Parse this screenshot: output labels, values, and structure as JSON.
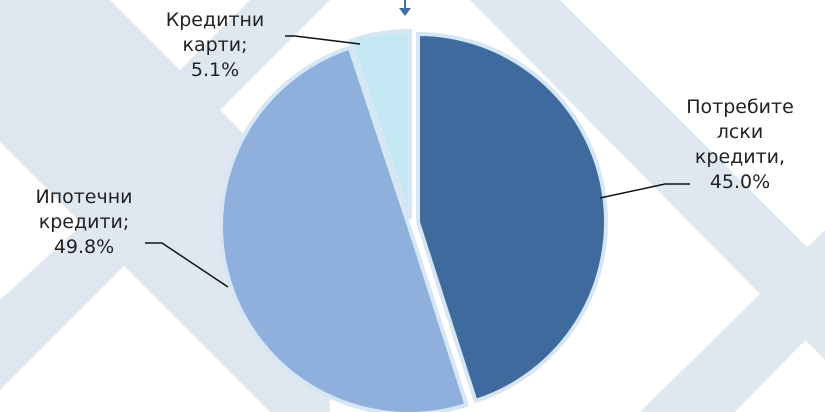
{
  "chart_data": {
    "type": "pie",
    "categories": [
      "Потребителски кредити,",
      "Ипотечни кредити;",
      "Кредитни карти;"
    ],
    "values": [
      45.0,
      49.8,
      5.1
    ],
    "value_labels": [
      "45.0%",
      "49.8%",
      "5.1%"
    ],
    "colors": [
      "#3f6a9e",
      "#8fb0dd",
      "#c3e8f3"
    ]
  }
}
